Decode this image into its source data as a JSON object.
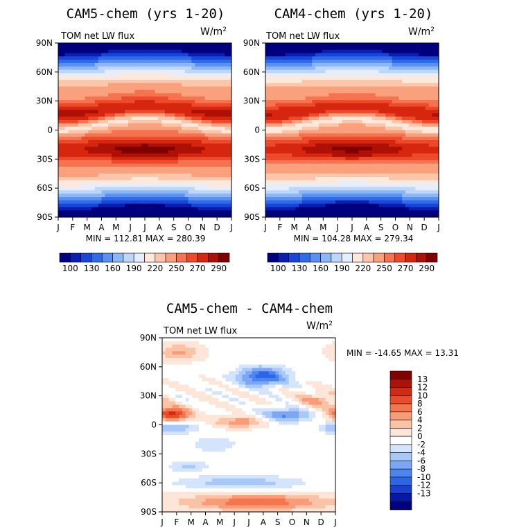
{
  "palette": {
    "main_levels": [
      "100",
      "130",
      "160",
      "190",
      "220",
      "250",
      "270",
      "290"
    ],
    "main_colors": [
      "#00007f",
      "#0a1fb0",
      "#1846d8",
      "#2e6be8",
      "#5b90f0",
      "#8db6f5",
      "#bdd6fa",
      "#e6eefc",
      "#fde8dc",
      "#fbc6aa",
      "#f9a07c",
      "#f57350",
      "#ec4a2a",
      "#d6260f",
      "#ad1106",
      "#7f0000"
    ],
    "diff_colors": [
      "#00007f",
      "#0718a6",
      "#1a3ed0",
      "#2e64e6",
      "#4d85f0",
      "#7ca7f6",
      "#a9c8fa",
      "#d4e4fc",
      "#ffffff",
      "#fde6d8",
      "#fbc3a6",
      "#f89c78",
      "#f5754f",
      "#ec4b2b",
      "#d12a12",
      "#ae1206",
      "#820000"
    ],
    "diff_levels": [
      "13",
      "12",
      "10",
      "8",
      "6",
      "4",
      "2",
      "0",
      "-2",
      "-4",
      "-6",
      "-8",
      "-10",
      "-12",
      "-13"
    ]
  },
  "panels": [
    {
      "title": "CAM5-chem (yrs 1-20)",
      "subtitle": "TOM  net  LW  flux",
      "units": "W/m",
      "units_sup": "2",
      "stats": "MIN =  112.81  MAX =  280.39",
      "variant": 0
    },
    {
      "title": "CAM4-chem (yrs 1-20)",
      "subtitle": "TOM  net  LW  flux",
      "units": "W/m",
      "units_sup": "2",
      "stats": "MIN =  104.28  MAX =  279.34",
      "variant": 1
    },
    {
      "title": "CAM5-chem - CAM4-chem",
      "subtitle": "TOM  net  LW  flux",
      "units": "W/m",
      "units_sup": "2",
      "stats": "MIN = -14.65  MAX =   13.31",
      "variant": 2
    }
  ],
  "chart_data": [
    {
      "type": "heatmap",
      "title": "CAM5-chem (yrs 1-20)",
      "subtitle": "TOM net LW flux",
      "units": "W/m2",
      "x": [
        "J",
        "F",
        "M",
        "A",
        "M",
        "J",
        "J",
        "A",
        "S",
        "O",
        "N",
        "D",
        "J"
      ],
      "y": [
        "90N",
        "60N",
        "30N",
        "0",
        "30S",
        "60S",
        "90S"
      ],
      "z_min": 112.81,
      "z_max": 280.39,
      "colorbar_labels": [
        100,
        130,
        160,
        190,
        220,
        250,
        270,
        290
      ]
    },
    {
      "type": "heatmap",
      "title": "CAM4-chem (yrs 1-20)",
      "subtitle": "TOM net LW flux",
      "units": "W/m2",
      "x": [
        "J",
        "F",
        "M",
        "A",
        "M",
        "J",
        "J",
        "A",
        "S",
        "O",
        "N",
        "D",
        "J"
      ],
      "y": [
        "90N",
        "60N",
        "30N",
        "0",
        "30S",
        "60S",
        "90S"
      ],
      "z_min": 104.28,
      "z_max": 279.34,
      "colorbar_labels": [
        100,
        130,
        160,
        190,
        220,
        250,
        270,
        290
      ]
    },
    {
      "type": "heatmap",
      "title": "CAM5-chem - CAM4-chem",
      "subtitle": "TOM net LW flux",
      "units": "W/m2",
      "x": [
        "J",
        "F",
        "M",
        "A",
        "M",
        "J",
        "J",
        "A",
        "S",
        "O",
        "N",
        "D",
        "J"
      ],
      "y": [
        "90N",
        "60N",
        "30N",
        "0",
        "30S",
        "60S",
        "90S"
      ],
      "z_min": -14.65,
      "z_max": 13.31,
      "colorbar_labels": [
        13,
        12,
        10,
        8,
        6,
        4,
        2,
        0,
        -2,
        -4,
        -6,
        -8,
        -10,
        -12,
        -13
      ]
    }
  ]
}
